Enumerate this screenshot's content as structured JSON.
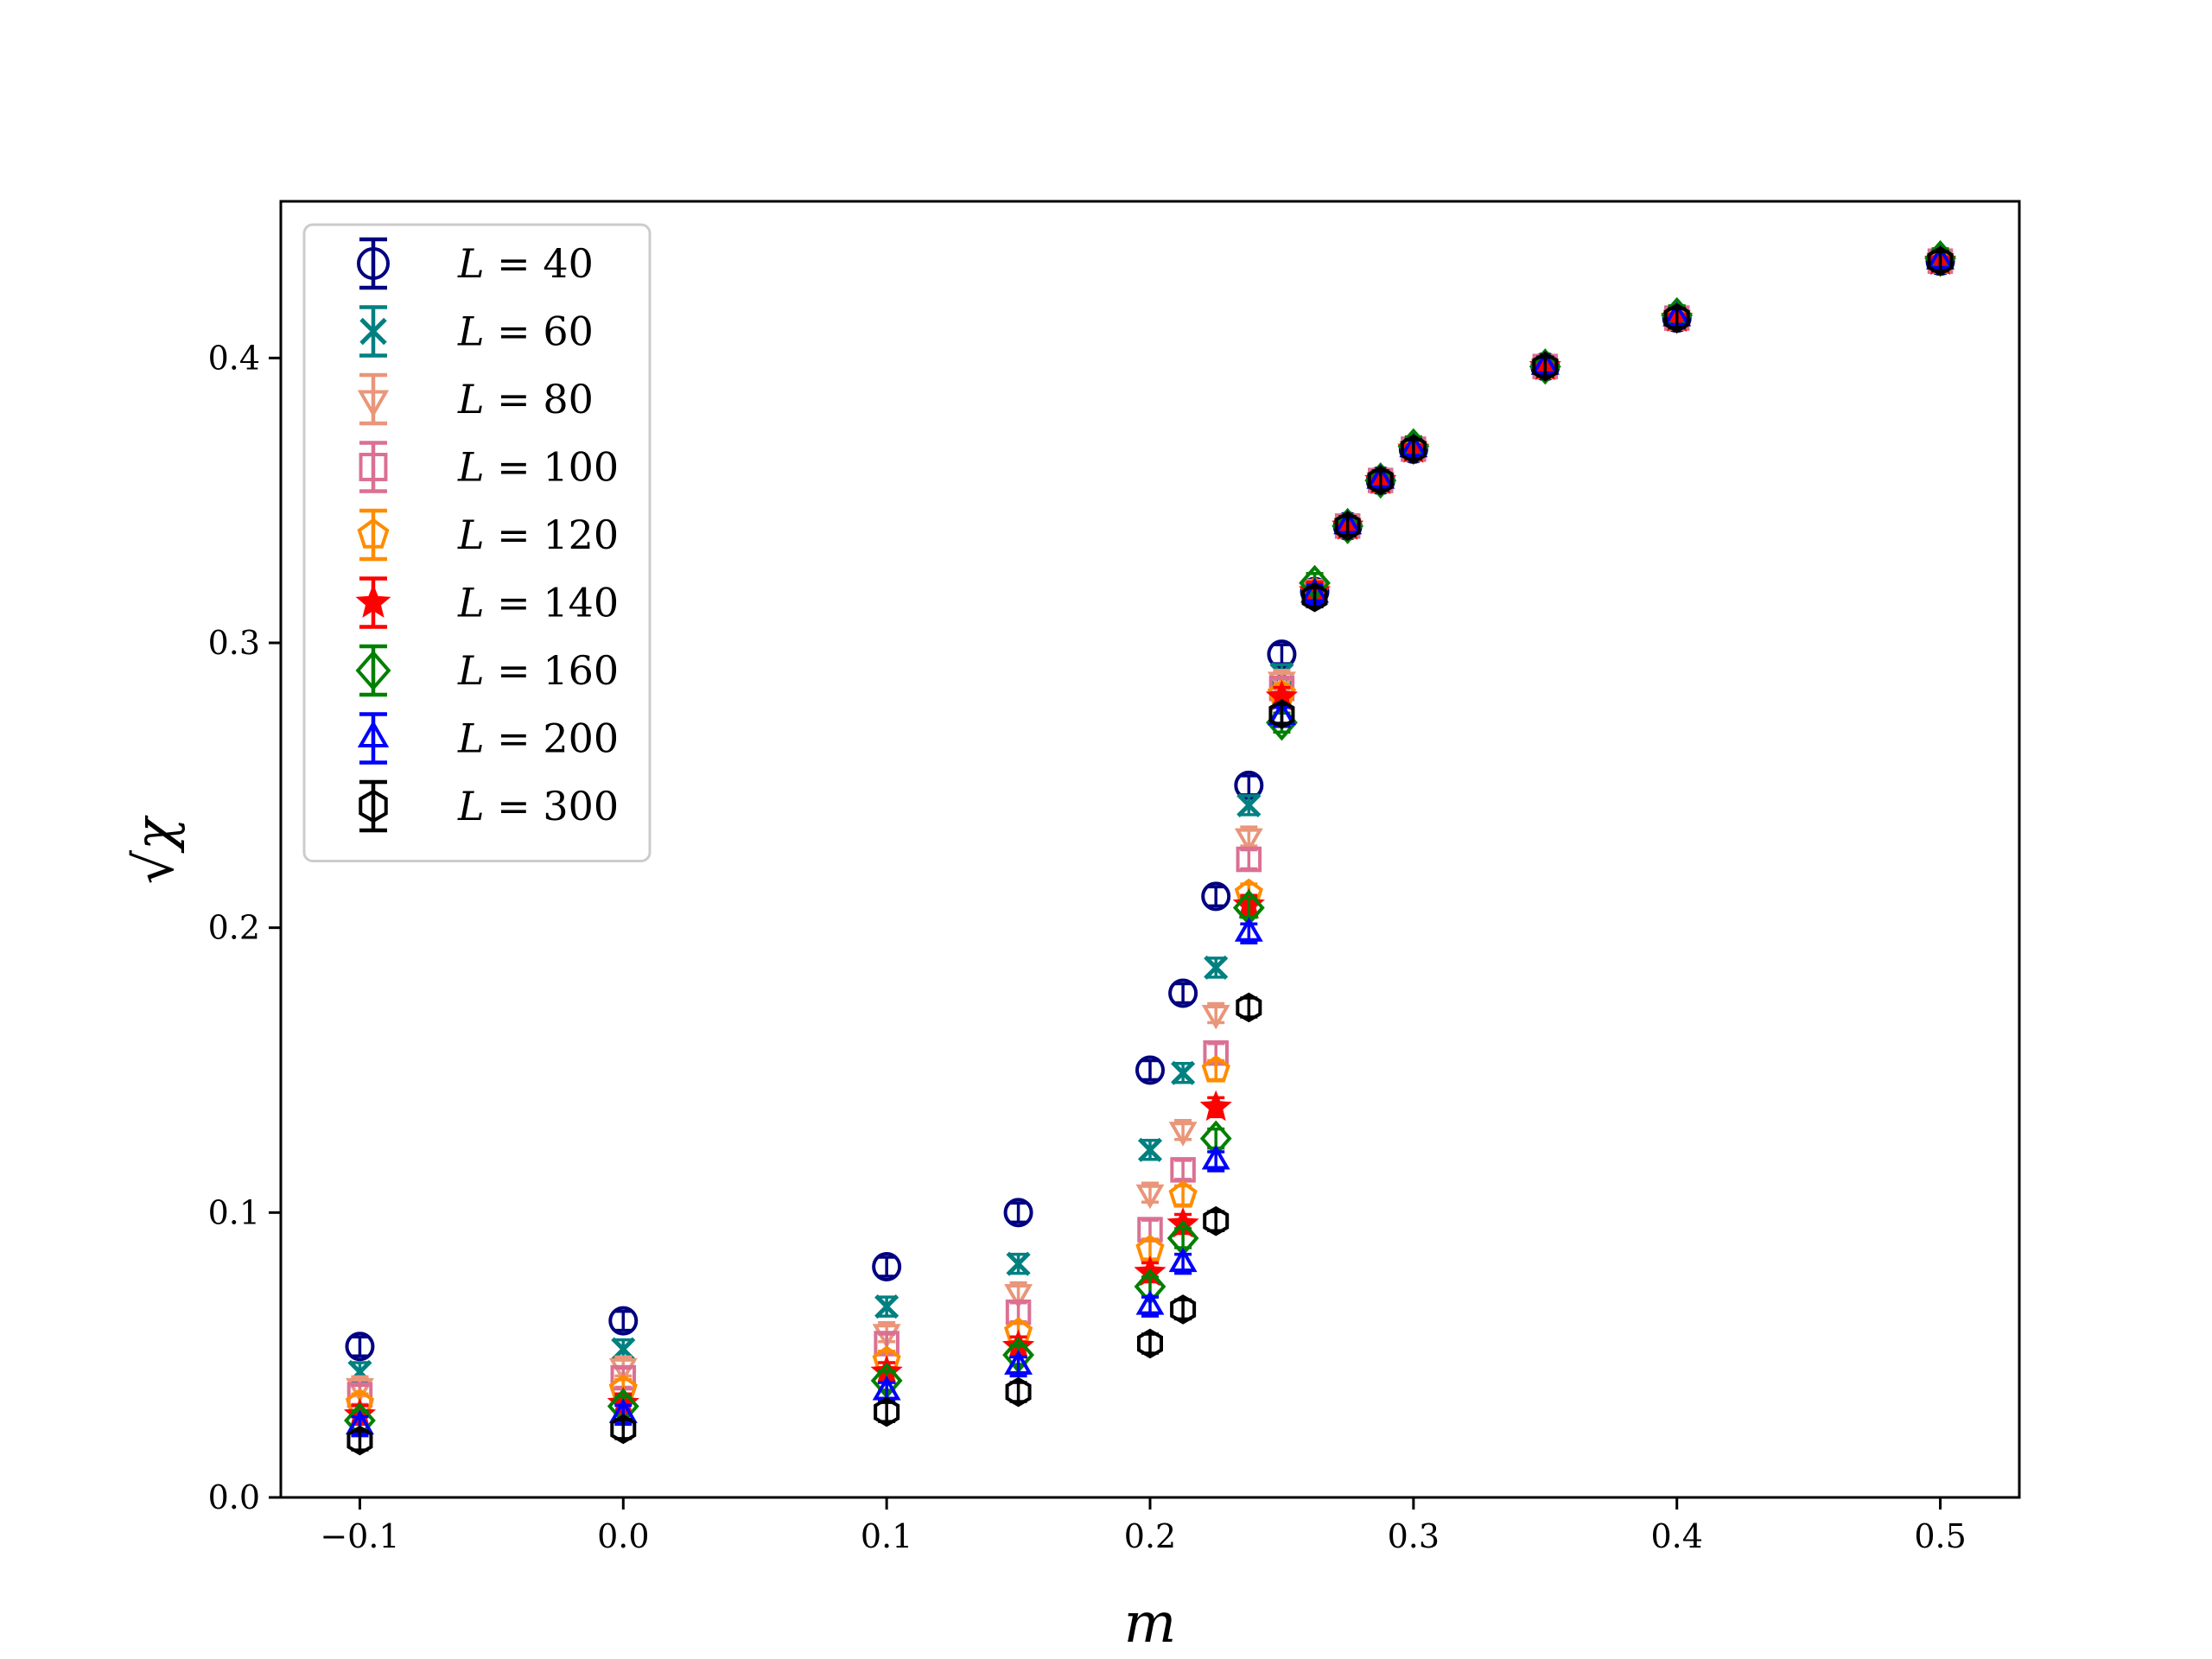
{
  "chart_data": {
    "type": "scatter",
    "xlabel": "m",
    "ylabel": "√χ",
    "xlim": [
      -0.13,
      0.53
    ],
    "ylim": [
      0.0,
      0.455
    ],
    "xticks": [
      -0.1,
      0.0,
      0.1,
      0.2,
      0.3,
      0.4,
      0.5
    ],
    "xtick_labels": [
      "−0.1",
      "0.0",
      "0.1",
      "0.2",
      "0.3",
      "0.4",
      "0.5"
    ],
    "yticks": [
      0.0,
      0.1,
      0.2,
      0.3,
      0.4
    ],
    "ytick_labels": [
      "0.0",
      "0.1",
      "0.2",
      "0.3",
      "0.4"
    ],
    "grid": false,
    "legend_position": "upper-left",
    "error_bars": true,
    "x": [
      -0.1,
      0.0,
      0.1,
      0.15,
      0.2,
      0.2125,
      0.225,
      0.2375,
      0.25,
      0.2625,
      0.275,
      0.2875,
      0.3,
      0.35,
      0.4,
      0.5
    ],
    "series": [
      {
        "name": "L = 40",
        "legend_var": "L",
        "legend_value": "40",
        "marker": "circle",
        "color": "#000080",
        "y": [
          0.053,
          0.062,
          0.081,
          0.1,
          0.15,
          0.177,
          0.211,
          0.25,
          0.296,
          0.318,
          0.341,
          0.357,
          0.368,
          0.397,
          0.414,
          0.434
        ]
      },
      {
        "name": "L = 60",
        "legend_var": "L",
        "legend_value": "60",
        "marker": "x",
        "color": "#008080",
        "y": [
          0.044,
          0.052,
          0.067,
          0.082,
          0.122,
          0.149,
          0.186,
          0.243,
          0.289,
          0.318,
          0.341,
          0.357,
          0.368,
          0.397,
          0.414,
          0.434
        ]
      },
      {
        "name": "L = 80",
        "legend_var": "L",
        "legend_value": "80",
        "marker": "triangle_down",
        "color": "#e9967a",
        "y": [
          0.039,
          0.046,
          0.058,
          0.072,
          0.107,
          0.129,
          0.17,
          0.232,
          0.287,
          0.318,
          0.341,
          0.357,
          0.368,
          0.397,
          0.414,
          0.434
        ]
      },
      {
        "name": "L = 100",
        "legend_var": "L",
        "legend_value": "100",
        "marker": "square",
        "color": "#db7093",
        "y": [
          0.036,
          0.042,
          0.054,
          0.065,
          0.094,
          0.115,
          0.156,
          0.224,
          0.284,
          0.318,
          0.341,
          0.357,
          0.368,
          0.397,
          0.414,
          0.434
        ]
      },
      {
        "name": "L = 120",
        "legend_var": "L",
        "legend_value": "120",
        "marker": "pentagon",
        "color": "#ff8c00",
        "y": [
          0.033,
          0.038,
          0.048,
          0.058,
          0.087,
          0.106,
          0.15,
          0.212,
          0.282,
          0.318,
          0.341,
          0.357,
          0.368,
          0.397,
          0.414,
          0.434
        ]
      },
      {
        "name": "L = 140",
        "legend_var": "L",
        "legend_value": "140",
        "marker": "star",
        "color": "#ff0000",
        "y": [
          0.029,
          0.033,
          0.044,
          0.053,
          0.079,
          0.096,
          0.137,
          0.208,
          0.281,
          0.318,
          0.341,
          0.357,
          0.368,
          0.397,
          0.414,
          0.434
        ]
      },
      {
        "name": "L = 160",
        "legend_var": "L",
        "legend_value": "160",
        "marker": "diamond",
        "color": "#008000",
        "y": [
          0.027,
          0.032,
          0.041,
          0.05,
          0.074,
          0.091,
          0.126,
          0.207,
          0.272,
          0.321,
          0.341,
          0.357,
          0.369,
          0.397,
          0.415,
          0.435
        ]
      },
      {
        "name": "L = 200",
        "legend_var": "L",
        "legend_value": "200",
        "marker": "triangle_up",
        "color": "#0000ff",
        "y": [
          0.025,
          0.029,
          0.037,
          0.046,
          0.067,
          0.082,
          0.118,
          0.198,
          0.274,
          0.317,
          0.341,
          0.357,
          0.368,
          0.397,
          0.414,
          0.434
        ]
      },
      {
        "name": "L = 300",
        "legend_var": "L",
        "legend_value": "300",
        "marker": "hexagon",
        "color": "#000000",
        "y": [
          0.02,
          0.024,
          0.03,
          0.037,
          0.054,
          0.066,
          0.097,
          0.172,
          0.275,
          0.316,
          0.341,
          0.357,
          0.368,
          0.397,
          0.414,
          0.434
        ]
      }
    ]
  }
}
